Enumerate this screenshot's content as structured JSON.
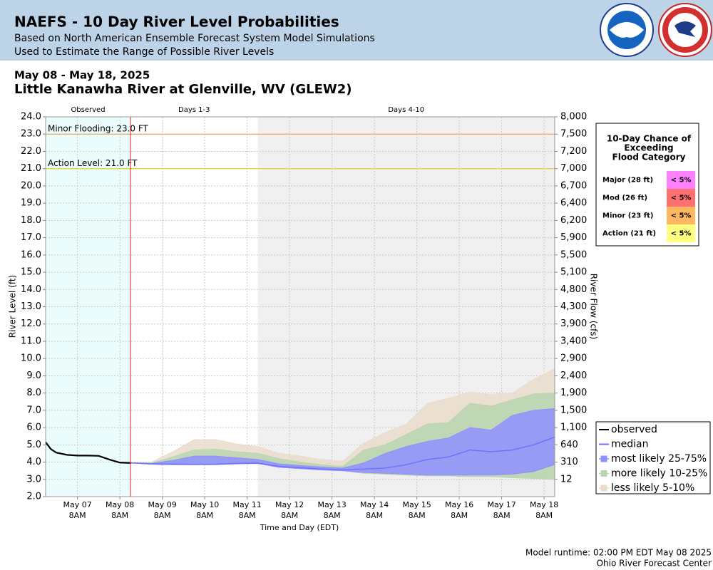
{
  "header": {
    "title": "NAEFS - 10 Day River Level Probabilities",
    "subtitle_lines": [
      "Based on North American Ensemble Forecast System Model Simulations",
      "Used to Estimate the Range of Possible River Levels"
    ]
  },
  "chart_data": {
    "type": "ensemble_band",
    "date_range": "May 08 - May 18, 2025",
    "title": "Little Kanawha River at Glenville, WV (GLEW2)",
    "xlabel": "Time and Day (EDT)",
    "ylabel": "River Level (ft)",
    "y2label": "River Flow (cfs)",
    "xlim": [
      "2025-05-06T14:00",
      "2025-05-18T14:00"
    ],
    "ylim": [
      2,
      24
    ],
    "grid": true,
    "yticks": [
      {
        "value": 24,
        "label": "24.0"
      },
      {
        "value": 23,
        "label": "23.0"
      },
      {
        "value": 22,
        "label": "22.0"
      },
      {
        "value": 21,
        "label": "21.0"
      },
      {
        "value": 20,
        "label": "20.0"
      },
      {
        "value": 19,
        "label": "19.0"
      },
      {
        "value": 18,
        "label": "18.0"
      },
      {
        "value": 17,
        "label": "17.0"
      },
      {
        "value": 16,
        "label": "16.0"
      },
      {
        "value": 15,
        "label": "15.0"
      },
      {
        "value": 14,
        "label": "14.0"
      },
      {
        "value": 13,
        "label": "13.0"
      },
      {
        "value": 12,
        "label": "12.0"
      },
      {
        "value": 11,
        "label": "11.0"
      },
      {
        "value": 10,
        "label": "10.0"
      },
      {
        "value": 9,
        "label": "9.0"
      },
      {
        "value": 8,
        "label": "8.0"
      },
      {
        "value": 7,
        "label": "7.0"
      },
      {
        "value": 6,
        "label": "6.0"
      },
      {
        "value": 5,
        "label": "5.0"
      },
      {
        "value": 4,
        "label": "4.0"
      },
      {
        "value": 3,
        "label": "3.0"
      },
      {
        "value": 2,
        "label": "2.0"
      }
    ],
    "y2ticks": [
      {
        "value": 8000,
        "label": "8,000"
      },
      {
        "value": 7500,
        "label": "7,500"
      },
      {
        "value": 7200,
        "label": "7,200"
      },
      {
        "value": 7000,
        "label": "7,000"
      },
      {
        "value": 6700,
        "label": "6,700"
      },
      {
        "value": 6400,
        "label": "6,400"
      },
      {
        "value": 6200,
        "label": "6,200"
      },
      {
        "value": 5900,
        "label": "5,900"
      },
      {
        "value": 5500,
        "label": "5,500"
      },
      {
        "value": 5100,
        "label": "5,100"
      },
      {
        "value": 4800,
        "label": "4,800"
      },
      {
        "value": 4300,
        "label": "4,300"
      },
      {
        "value": 3900,
        "label": "3,900"
      },
      {
        "value": 3400,
        "label": "3,400"
      },
      {
        "value": 2900,
        "label": "2,900"
      },
      {
        "value": 2400,
        "label": "2,400"
      },
      {
        "value": 1900,
        "label": "1,900"
      },
      {
        "value": 1500,
        "label": "1,500"
      },
      {
        "value": 1100,
        "label": "1,100"
      },
      640,
      310,
      12
    ],
    "xticks": [
      {
        "value": "2025-05-07T08:00",
        "label": "May 07 8AM"
      },
      {
        "value": "2025-05-08T08:00",
        "label": "May 08 8AM"
      },
      {
        "value": "2025-05-09T08:00",
        "label": "May 09 8AM"
      },
      {
        "value": "2025-05-10T08:00",
        "label": "May 10 8AM"
      },
      {
        "value": "2025-05-11T08:00",
        "label": "May 11 8AM"
      },
      {
        "value": "2025-05-12T08:00",
        "label": "May 12 8AM"
      },
      {
        "value": "2025-05-13T08:00",
        "label": "May 13 8AM"
      },
      {
        "value": "2025-05-14T08:00",
        "label": "May 14 8AM"
      },
      {
        "value": "2025-05-15T08:00",
        "label": "May 15 8AM"
      },
      {
        "value": "2025-05-16T08:00",
        "label": "May 16 8AM"
      },
      {
        "value": "2025-05-17T08:00",
        "label": "May 17 8AM"
      },
      {
        "value": "2025-05-18T08:00",
        "label": "May 18 8AM"
      }
    ],
    "sections": [
      {
        "label": "Observed",
        "start": "2025-05-06T14:00",
        "end": "2025-05-08T14:00",
        "color": "#ebfcfc"
      },
      {
        "label": "Days 1-3",
        "start": "2025-05-08T14:00",
        "end": "2025-05-11T14:00",
        "color": "#ffffff"
      },
      {
        "label": "Days 4-10",
        "start": "2025-05-11T14:00",
        "end": "2025-05-18T14:00",
        "color": "#f0f0f0"
      }
    ],
    "runtime_marker": {
      "x": "2025-05-08T14:00",
      "color": "#dd2222"
    },
    "flood_lines": [
      {
        "label": "Minor Flooding: 23.0 FT",
        "value": 23,
        "color": "#f0a860"
      },
      {
        "label": "Action Level: 21.0 FT",
        "value": 21,
        "color": "#e8d840"
      }
    ],
    "series": [
      {
        "name": "less likely 5-10%",
        "kind": "band",
        "color": "#eadccb",
        "x": [
          "2025-05-08T14:00",
          "2025-05-09T02:00",
          "2025-05-09T14:00",
          "2025-05-10T02:00",
          "2025-05-10T14:00",
          "2025-05-11T02:00",
          "2025-05-11T14:00",
          "2025-05-12T02:00",
          "2025-05-12T14:00",
          "2025-05-13T02:00",
          "2025-05-13T14:00",
          "2025-05-14T02:00",
          "2025-05-14T14:00",
          "2025-05-15T02:00",
          "2025-05-15T14:00",
          "2025-05-16T02:00",
          "2025-05-16T14:00",
          "2025-05-17T02:00",
          "2025-05-17T14:00",
          "2025-05-18T02:00",
          "2025-05-18T14:00"
        ],
        "upper": [
          3.95,
          4.0,
          4.6,
          5.3,
          5.3,
          5.05,
          4.9,
          4.5,
          4.35,
          4.15,
          4.05,
          5.1,
          5.7,
          6.2,
          7.4,
          7.7,
          8.05,
          7.9,
          8.0,
          8.8,
          9.4
        ],
        "lower": [
          3.95,
          3.88,
          3.85,
          3.85,
          3.85,
          3.9,
          3.92,
          3.7,
          3.62,
          3.55,
          3.5,
          3.35,
          3.3,
          3.25,
          3.2,
          3.2,
          3.15,
          3.15,
          3.1,
          3.05,
          3.0
        ]
      },
      {
        "name": "more likely 10-25%",
        "kind": "band",
        "color": "#b9d6b0",
        "x": [
          "2025-05-08T14:00",
          "2025-05-09T02:00",
          "2025-05-09T14:00",
          "2025-05-10T02:00",
          "2025-05-10T14:00",
          "2025-05-11T02:00",
          "2025-05-11T14:00",
          "2025-05-12T02:00",
          "2025-05-12T14:00",
          "2025-05-13T02:00",
          "2025-05-13T14:00",
          "2025-05-14T02:00",
          "2025-05-14T14:00",
          "2025-05-15T02:00",
          "2025-05-15T14:00",
          "2025-05-16T02:00",
          "2025-05-16T14:00",
          "2025-05-17T02:00",
          "2025-05-17T14:00",
          "2025-05-18T02:00",
          "2025-05-18T14:00"
        ],
        "upper": [
          3.95,
          3.95,
          4.3,
          4.7,
          4.75,
          4.6,
          4.5,
          4.2,
          4.0,
          3.85,
          3.75,
          4.7,
          5.0,
          5.6,
          6.2,
          6.3,
          7.4,
          7.25,
          7.6,
          7.95,
          8.0
        ],
        "lower": [
          3.95,
          3.88,
          3.85,
          3.85,
          3.85,
          3.9,
          3.92,
          3.7,
          3.62,
          3.55,
          3.5,
          3.35,
          3.3,
          3.25,
          3.2,
          3.2,
          3.15,
          3.15,
          3.1,
          3.05,
          3.0
        ]
      },
      {
        "name": "most likely 25-75%",
        "kind": "band",
        "color": "#9090ff",
        "x": [
          "2025-05-08T14:00",
          "2025-05-09T02:00",
          "2025-05-09T14:00",
          "2025-05-10T02:00",
          "2025-05-10T14:00",
          "2025-05-11T02:00",
          "2025-05-11T14:00",
          "2025-05-12T02:00",
          "2025-05-12T14:00",
          "2025-05-13T02:00",
          "2025-05-13T14:00",
          "2025-05-14T02:00",
          "2025-05-14T14:00",
          "2025-05-15T02:00",
          "2025-05-15T14:00",
          "2025-05-16T02:00",
          "2025-05-16T14:00",
          "2025-05-17T02:00",
          "2025-05-17T14:00",
          "2025-05-18T02:00",
          "2025-05-18T14:00"
        ],
        "upper": [
          3.95,
          3.92,
          4.1,
          4.35,
          4.35,
          4.25,
          4.15,
          3.9,
          3.8,
          3.72,
          3.65,
          3.95,
          4.5,
          4.9,
          5.2,
          5.4,
          6.0,
          5.85,
          6.7,
          7.0,
          7.1
        ],
        "lower": [
          3.95,
          3.88,
          3.85,
          3.85,
          3.85,
          3.9,
          3.92,
          3.7,
          3.62,
          3.55,
          3.5,
          3.4,
          3.35,
          3.3,
          3.25,
          3.25,
          3.25,
          3.25,
          3.3,
          3.45,
          3.85
        ]
      },
      {
        "name": "median",
        "kind": "line",
        "color": "#7070ff",
        "x": [
          "2025-05-08T14:00",
          "2025-05-09T02:00",
          "2025-05-09T14:00",
          "2025-05-10T02:00",
          "2025-05-10T14:00",
          "2025-05-11T02:00",
          "2025-05-11T14:00",
          "2025-05-12T02:00",
          "2025-05-12T14:00",
          "2025-05-13T02:00",
          "2025-05-13T14:00",
          "2025-05-14T02:00",
          "2025-05-14T14:00",
          "2025-05-15T02:00",
          "2025-05-15T14:00",
          "2025-05-16T02:00",
          "2025-05-16T14:00",
          "2025-05-17T02:00",
          "2025-05-17T14:00",
          "2025-05-18T02:00",
          "2025-05-18T14:00"
        ],
        "values": [
          3.95,
          3.9,
          3.88,
          3.87,
          3.88,
          3.92,
          3.95,
          3.75,
          3.68,
          3.6,
          3.55,
          3.6,
          3.65,
          3.85,
          4.15,
          4.3,
          4.7,
          4.6,
          4.7,
          5.0,
          5.45
        ]
      },
      {
        "name": "observed",
        "kind": "line",
        "color": "#000000",
        "x": [
          "2025-05-06T14:00",
          "2025-05-06T17:00",
          "2025-05-06T20:00",
          "2025-05-07T02:00",
          "2025-05-07T08:00",
          "2025-05-07T14:00",
          "2025-05-07T20:00",
          "2025-05-08T02:00",
          "2025-05-08T08:00",
          "2025-05-08T14:00"
        ],
        "values": [
          5.15,
          4.75,
          4.55,
          4.42,
          4.38,
          4.38,
          4.36,
          4.15,
          3.97,
          3.95
        ]
      }
    ],
    "legend": {
      "order": [
        4,
        3,
        2,
        1,
        0
      ],
      "position": "lower right"
    },
    "chance_table": {
      "title_lines": [
        "10-Day Chance of",
        "Exceeding",
        "Flood Category"
      ],
      "rows": [
        {
          "category": "Major (28 ft)",
          "chance": "< 5%",
          "color": "#ff80ff"
        },
        {
          "category": "Mod (26 ft)",
          "chance": "< 5%",
          "color": "#ff7070"
        },
        {
          "category": "Minor (23 ft)",
          "chance": "< 5%",
          "color": "#ffb860"
        },
        {
          "category": "Action (21 ft)",
          "chance": "< 5%",
          "color": "#ffff80"
        }
      ]
    }
  },
  "footer": {
    "lines": [
      "Model runtime: 02:00 PM EDT May 08 2025",
      "Ohio River Forecast Center"
    ]
  }
}
